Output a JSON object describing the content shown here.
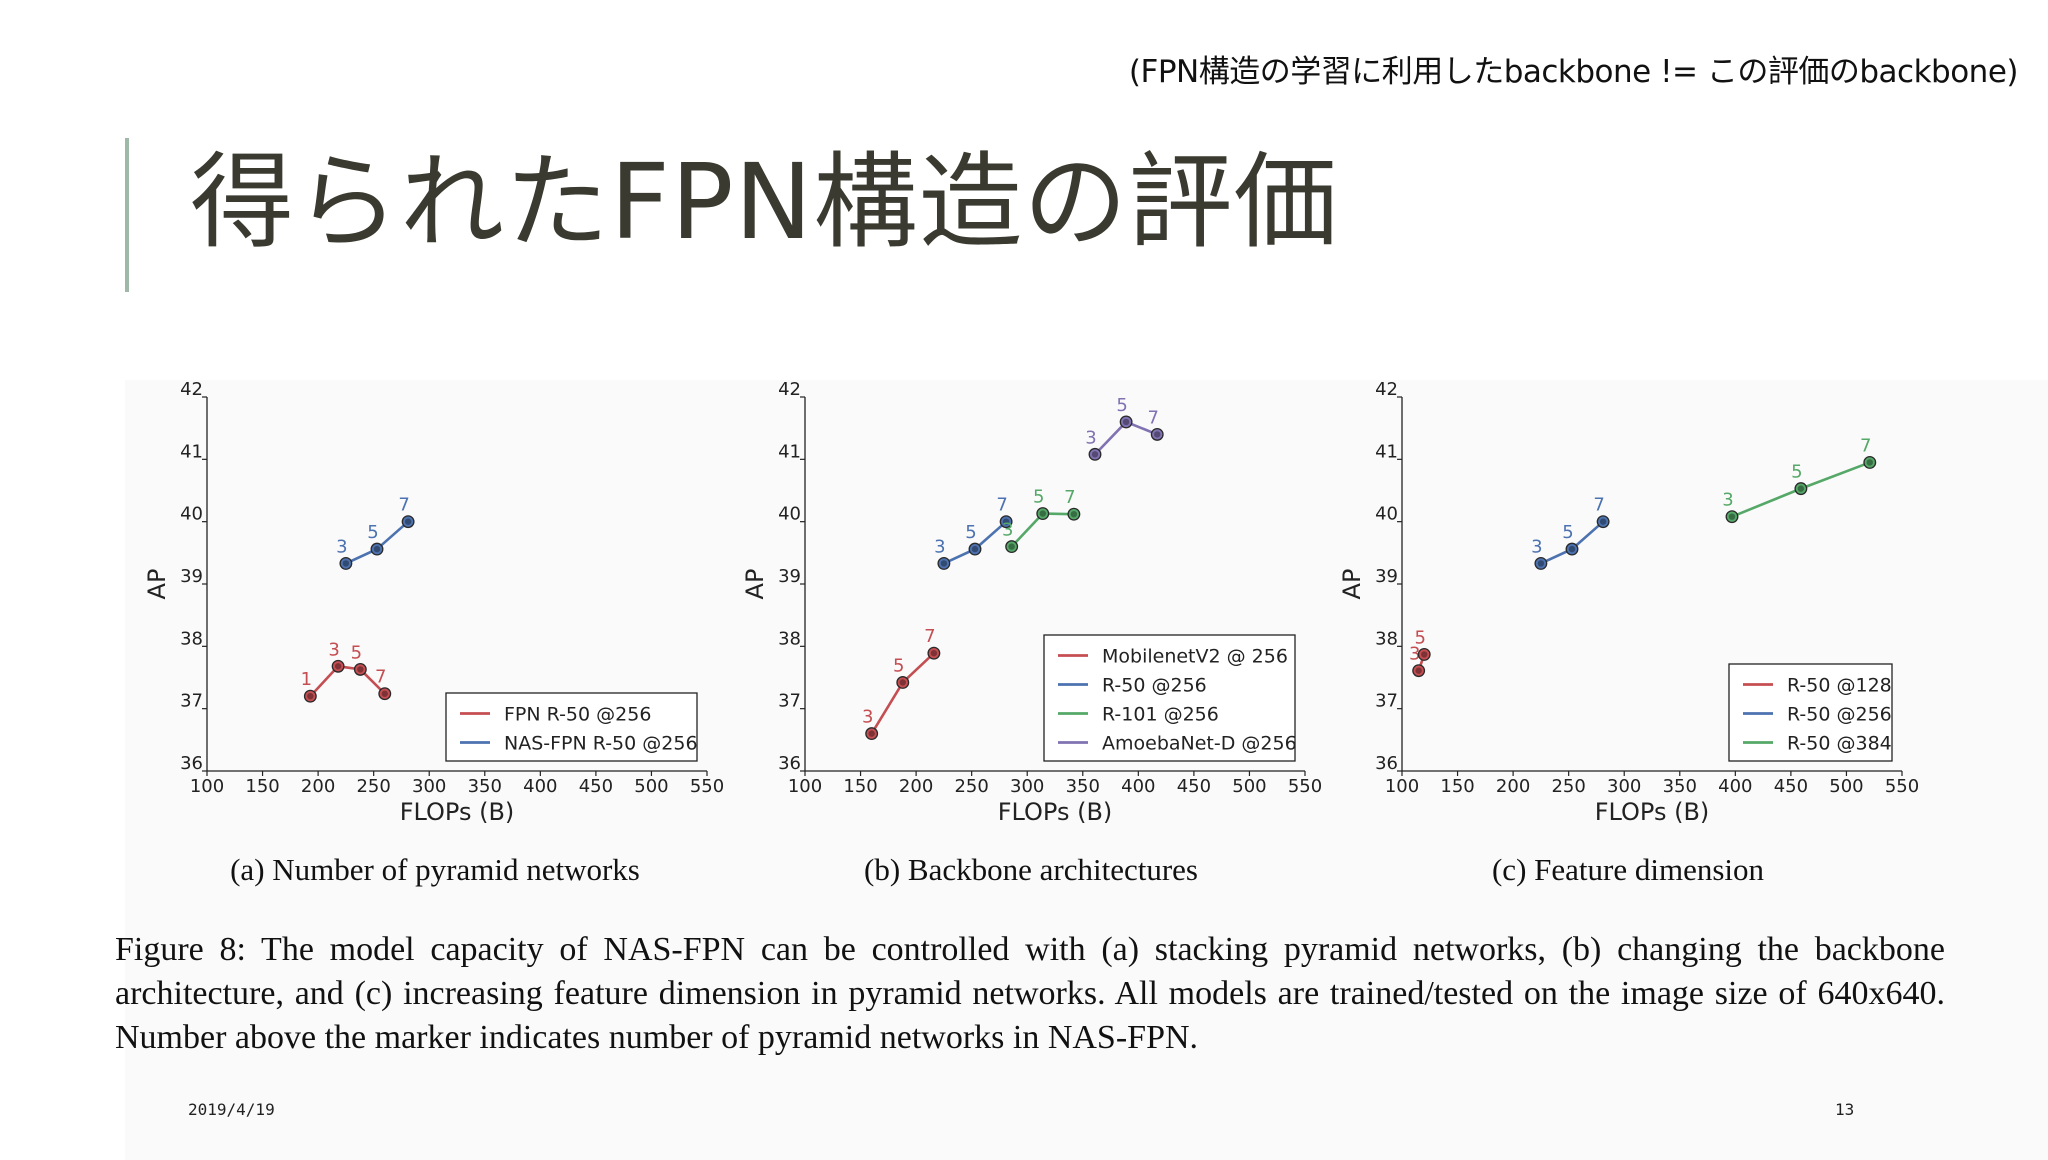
{
  "note": "(FPN構造の学習に利用したbackbone != この評価のbackbone)",
  "title": "得られたFPN構造の評価",
  "caption": "Figure 8: The model capacity of NAS-FPN can be controlled with (a) stacking pyramid networks, (b) changing the backbone architecture, and (c) increasing feature dimension in pyramid networks. All models are trained/tested on the image size of 640x640. Number above the marker indicates number of pyramid networks in NAS-FPN.",
  "footer": {
    "date": "2019/4/19",
    "page": "13"
  },
  "colors": {
    "red": "#c44e52",
    "blue": "#4c72b0",
    "green": "#55a868",
    "purple": "#8172b2"
  },
  "chart_data": [
    {
      "type": "line",
      "subcaption": "(a) Number of pyramid networks",
      "xlabel": "FLOPs (B)",
      "ylabel": "AP",
      "xlim": [
        100,
        550
      ],
      "ylim": [
        36,
        42
      ],
      "xticks": [
        100,
        150,
        200,
        250,
        300,
        350,
        400,
        450,
        500,
        550
      ],
      "yticks": [
        36,
        37,
        38,
        39,
        40,
        41,
        42
      ],
      "legend_position": "lower-right",
      "series": [
        {
          "name": "FPN R-50 @256",
          "color": "red",
          "labels": [
            "1",
            "3",
            "5",
            "7"
          ],
          "x": [
            193,
            218,
            238,
            260
          ],
          "y": [
            37.2,
            37.68,
            37.63,
            37.24
          ]
        },
        {
          "name": "NAS-FPN R-50 @256",
          "color": "blue",
          "labels": [
            "3",
            "5",
            "7"
          ],
          "x": [
            225,
            253,
            281
          ],
          "y": [
            39.33,
            39.56,
            40.0
          ]
        }
      ]
    },
    {
      "type": "line",
      "subcaption": "(b) Backbone architectures",
      "xlabel": "FLOPs (B)",
      "ylabel": "AP",
      "xlim": [
        100,
        550
      ],
      "ylim": [
        36,
        42
      ],
      "xticks": [
        100,
        150,
        200,
        250,
        300,
        350,
        400,
        450,
        500,
        550
      ],
      "yticks": [
        36,
        37,
        38,
        39,
        40,
        41,
        42
      ],
      "legend_position": "lower-right",
      "series": [
        {
          "name": "MobilenetV2 @ 256",
          "color": "red",
          "labels": [
            "3",
            "5",
            "7"
          ],
          "x": [
            160,
            188,
            216
          ],
          "y": [
            36.6,
            37.42,
            37.89
          ]
        },
        {
          "name": "R-50 @256",
          "color": "blue",
          "labels": [
            "3",
            "5",
            "7"
          ],
          "x": [
            225,
            253,
            281
          ],
          "y": [
            39.33,
            39.56,
            40.0
          ]
        },
        {
          "name": "R-101 @256",
          "color": "green",
          "labels": [
            "3",
            "5",
            "7"
          ],
          "x": [
            286,
            314,
            342
          ],
          "y": [
            39.6,
            40.13,
            40.12
          ]
        },
        {
          "name": "AmoebaNet-D @256",
          "color": "purple",
          "labels": [
            "3",
            "5",
            "7"
          ],
          "x": [
            361,
            389,
            417
          ],
          "y": [
            41.08,
            41.6,
            41.4
          ]
        }
      ]
    },
    {
      "type": "line",
      "subcaption": "(c) Feature dimension",
      "xlabel": "FLOPs (B)",
      "ylabel": "AP",
      "xlim": [
        100,
        550
      ],
      "ylim": [
        36,
        42
      ],
      "xticks": [
        100,
        150,
        200,
        250,
        300,
        350,
        400,
        450,
        500,
        550
      ],
      "yticks": [
        36,
        37,
        38,
        39,
        40,
        41,
        42
      ],
      "legend_position": "lower-right",
      "series": [
        {
          "name": "R-50 @128",
          "color": "red",
          "labels": [
            "3",
            "5"
          ],
          "x": [
            115,
            120
          ],
          "y": [
            37.61,
            37.87
          ]
        },
        {
          "name": "R-50 @256",
          "color": "blue",
          "labels": [
            "3",
            "5",
            "7"
          ],
          "x": [
            225,
            253,
            281
          ],
          "y": [
            39.33,
            39.56,
            40.0
          ]
        },
        {
          "name": "R-50 @384",
          "color": "green",
          "labels": [
            "3",
            "5",
            "7"
          ],
          "x": [
            397,
            459,
            521
          ],
          "y": [
            40.08,
            40.53,
            40.95
          ]
        }
      ]
    }
  ]
}
